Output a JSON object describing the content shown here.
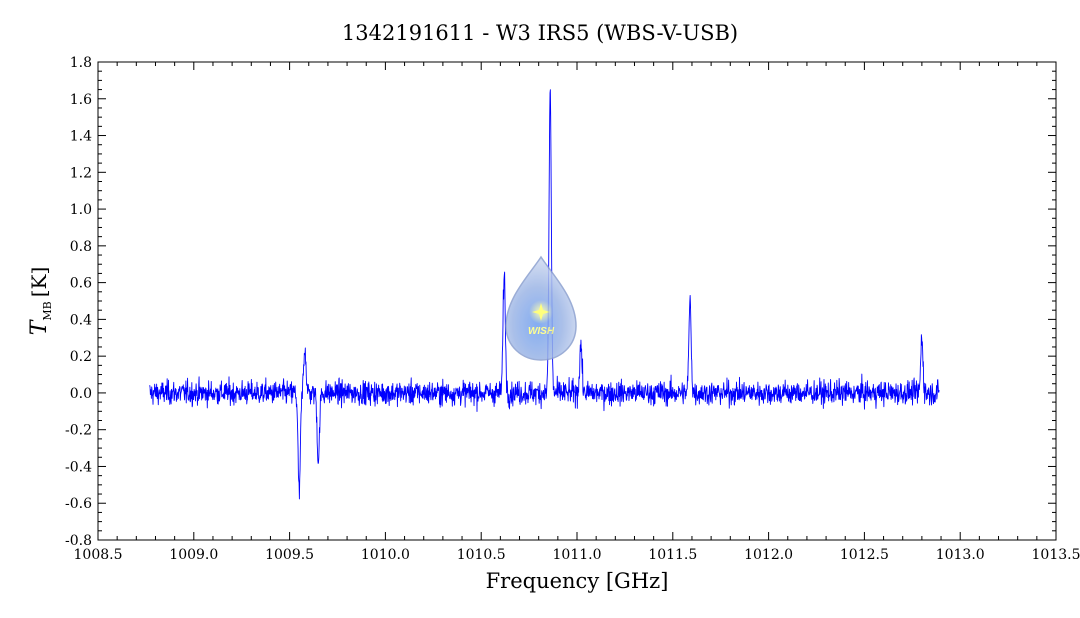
{
  "chart_data": {
    "type": "line",
    "title": "1342191611 - W3 IRS5 (WBS-V-USB)",
    "xlabel": "Frequency [GHz]",
    "ylabel_main": "T",
    "ylabel_sub": "MB",
    "ylabel_unit": "[K]",
    "xlim": [
      1008.5,
      1013.5
    ],
    "ylim": [
      -0.8,
      1.8
    ],
    "x_major_ticks": [
      1008.5,
      1009.0,
      1009.5,
      1010.0,
      1010.5,
      1011.0,
      1011.5,
      1012.0,
      1012.5,
      1013.0,
      1013.5
    ],
    "x_tick_labels": [
      "1008.5",
      "1009.0",
      "1009.5",
      "1010.0",
      "1010.5",
      "1011.0",
      "1011.5",
      "1012.0",
      "1012.5",
      "1013.0",
      "1013.5"
    ],
    "y_major_ticks": [
      -0.8,
      -0.6,
      -0.4,
      -0.2,
      0.0,
      0.2,
      0.4,
      0.6,
      0.8,
      1.0,
      1.2,
      1.4,
      1.6,
      1.8
    ],
    "y_tick_labels": [
      "-0.8",
      "-0.6",
      "-0.4",
      "-0.2",
      "0.0",
      "0.2",
      "0.4",
      "0.6",
      "0.8",
      "1.0",
      "1.2",
      "1.4",
      "1.6",
      "1.8"
    ],
    "grid": false,
    "series": [
      {
        "color": "#0000ff",
        "x_range": [
          1008.77,
          1012.89
        ],
        "baseline": 0.0,
        "noise_rms": 0.05,
        "features": [
          {
            "x": 1009.55,
            "y": -0.55
          },
          {
            "x": 1009.58,
            "y": 0.25
          },
          {
            "x": 1009.65,
            "y": -0.37
          },
          {
            "x": 1010.62,
            "y": 0.65
          },
          {
            "x": 1010.86,
            "y": 1.64
          },
          {
            "x": 1011.02,
            "y": 0.27
          },
          {
            "x": 1011.59,
            "y": 0.5
          },
          {
            "x": 1012.8,
            "y": 0.3
          }
        ]
      }
    ]
  },
  "watermark": {
    "text": "WISH"
  }
}
